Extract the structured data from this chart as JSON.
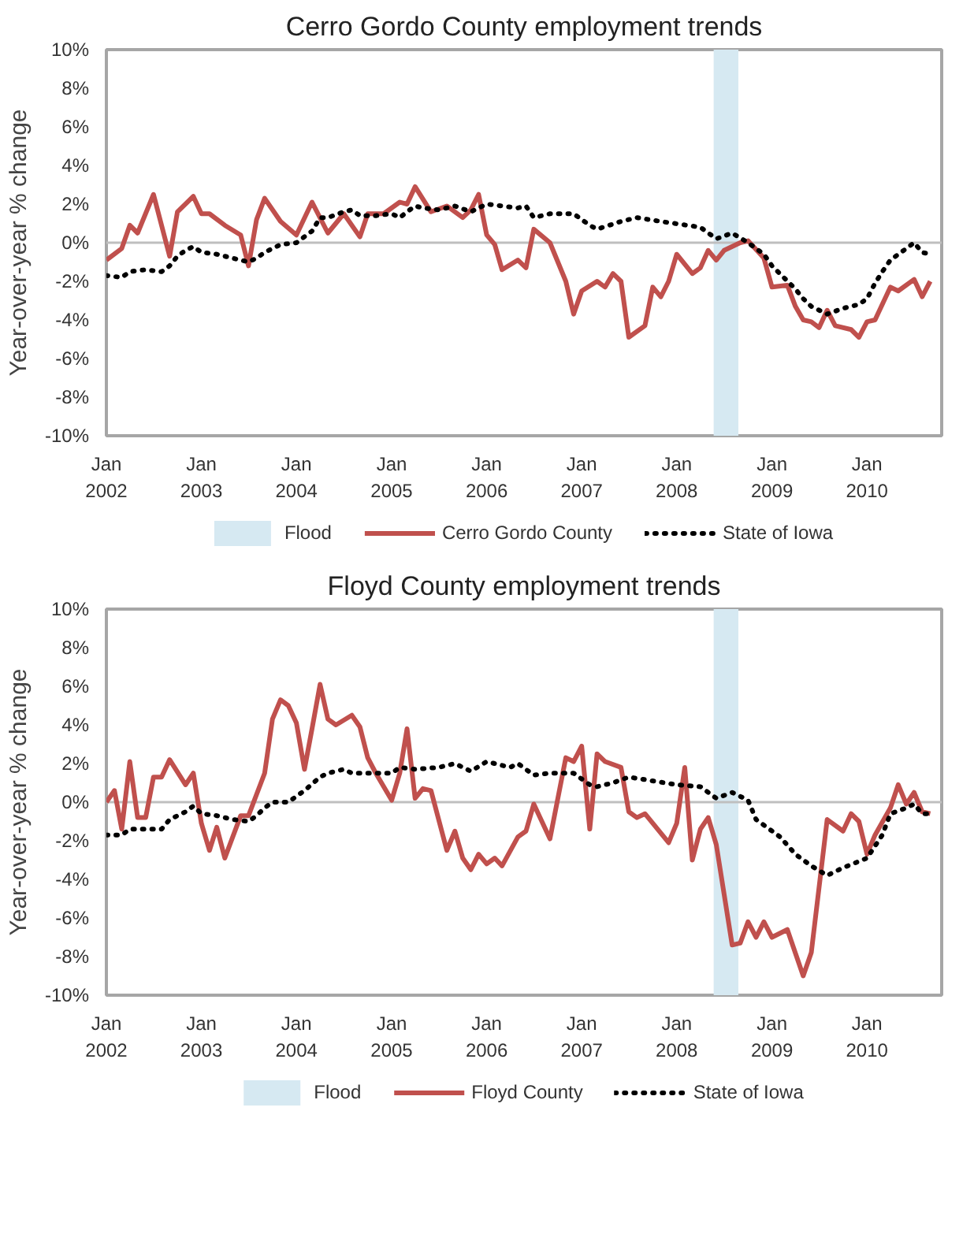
{
  "chart_data": [
    {
      "type": "line",
      "title": "Cerro Gordo County employment trends",
      "ylabel": "Year-over-year % change",
      "xlim": [
        "2002-01",
        "2010-10-15"
      ],
      "ylim": [
        -10,
        10
      ],
      "xticks": [
        {
          "value": "2002-01",
          "label": "Jan\n2002"
        },
        {
          "value": "2003-01",
          "label": "Jan\n2003"
        },
        {
          "value": "2004-01",
          "label": "Jan\n2004"
        },
        {
          "value": "2005-01",
          "label": "Jan\n2005"
        },
        {
          "value": "2006-01",
          "label": "Jan\n2006"
        },
        {
          "value": "2007-01",
          "label": "Jan\n2007"
        },
        {
          "value": "2008-01",
          "label": "Jan\n2008"
        },
        {
          "value": "2009-01",
          "label": "Jan\n2009"
        },
        {
          "value": "2010-01",
          "label": "Jan\n2010"
        }
      ],
      "yticks": [
        {
          "value": -10,
          "label": "-10%"
        },
        {
          "value": -8,
          "label": "-8%"
        },
        {
          "value": -6,
          "label": "-6%"
        },
        {
          "value": -4,
          "label": "-4%"
        },
        {
          "value": -2,
          "label": "-2%"
        },
        {
          "value": 0,
          "label": "0%"
        },
        {
          "value": 2,
          "label": "2%"
        },
        {
          "value": 4,
          "label": "4%"
        },
        {
          "value": 6,
          "label": "6%"
        },
        {
          "value": 8,
          "label": "8%"
        },
        {
          "value": 10,
          "label": "10%"
        }
      ],
      "grid": false,
      "legend": "bottom",
      "bands": [
        {
          "axis": "x",
          "from": "2008-05-22",
          "to": "2008-08-25",
          "label": "Flood",
          "color": "#d6e9f2"
        }
      ],
      "ref_lines": [
        {
          "axis": "y",
          "value": 0,
          "color": "#bfbfbf"
        }
      ],
      "series": [
        {
          "name": "Cerro Gordo County",
          "color": "#c0504d",
          "line_style": "solid",
          "x": [
            "2002-01",
            "2002-03",
            "2002-04",
            "2002-05",
            "2002-07",
            "2002-09",
            "2002-10",
            "2002-12",
            "2003-01",
            "2003-02",
            "2003-04",
            "2003-06",
            "2003-07",
            "2003-08",
            "2003-09",
            "2003-11",
            "2004-01",
            "2004-03",
            "2004-05",
            "2004-07",
            "2004-09",
            "2004-10",
            "2004-12",
            "2005-02",
            "2005-03",
            "2005-04",
            "2005-06",
            "2005-08",
            "2005-10",
            "2005-11",
            "2005-12",
            "2006-01",
            "2006-02",
            "2006-03",
            "2006-05",
            "2006-06",
            "2006-07",
            "2006-09",
            "2006-11",
            "2006-12",
            "2007-01",
            "2007-03",
            "2007-04",
            "2007-05",
            "2007-06",
            "2007-07",
            "2007-09",
            "2007-10",
            "2007-11",
            "2007-12",
            "2008-01",
            "2008-03",
            "2008-04",
            "2008-05",
            "2008-06",
            "2008-07",
            "2008-09",
            "2008-10",
            "2008-12",
            "2009-01",
            "2009-03",
            "2009-04",
            "2009-05",
            "2009-06",
            "2009-07",
            "2009-08",
            "2009-09",
            "2009-11",
            "2009-12",
            "2010-01",
            "2010-02",
            "2010-04",
            "2010-05",
            "2010-07",
            "2010-08",
            "2010-09"
          ],
          "values": [
            -0.9,
            -0.3,
            0.9,
            0.5,
            2.5,
            -0.7,
            1.6,
            2.4,
            1.5,
            1.5,
            0.9,
            0.4,
            -1.2,
            1.2,
            2.3,
            1.1,
            0.4,
            2.1,
            0.5,
            1.5,
            0.3,
            1.5,
            1.5,
            2.1,
            2.0,
            2.9,
            1.6,
            1.9,
            1.3,
            1.7,
            2.5,
            0.4,
            -0.1,
            -1.4,
            -0.9,
            -1.3,
            0.7,
            0.0,
            -2.0,
            -3.7,
            -2.5,
            -2.0,
            -2.3,
            -1.6,
            -2.0,
            -4.9,
            -4.3,
            -2.3,
            -2.8,
            -2.0,
            -0.6,
            -1.6,
            -1.3,
            -0.4,
            -0.9,
            -0.4,
            0.0,
            0.1,
            -0.8,
            -2.3,
            -2.2,
            -3.3,
            -4.0,
            -4.1,
            -4.4,
            -3.5,
            -4.3,
            -4.5,
            -4.9,
            -4.1,
            -4.0,
            -2.3,
            -2.5,
            -1.9,
            -2.8,
            -2.0
          ]
        },
        {
          "name": "State of Iowa",
          "color": "#000000",
          "line_style": "dotted",
          "x": [
            "2002-01",
            "2002-03",
            "2002-04",
            "2002-06",
            "2002-08",
            "2002-09",
            "2002-10",
            "2002-11",
            "2002-12",
            "2003-01",
            "2003-03",
            "2003-05",
            "2003-07",
            "2003-08",
            "2003-09",
            "2003-11",
            "2004-01",
            "2004-03",
            "2004-04",
            "2004-05",
            "2004-07",
            "2004-08",
            "2004-09",
            "2004-11",
            "2005-01",
            "2005-02",
            "2005-03",
            "2005-04",
            "2005-05",
            "2005-07",
            "2005-09",
            "2005-11",
            "2006-01",
            "2006-03",
            "2006-05",
            "2006-06",
            "2006-07",
            "2006-09",
            "2006-12",
            "2007-02",
            "2007-03",
            "2007-06",
            "2007-08",
            "2007-11",
            "2008-04",
            "2008-06",
            "2008-08",
            "2008-10",
            "2008-12",
            "2009-01",
            "2009-04",
            "2009-05",
            "2009-06",
            "2009-08",
            "2009-10",
            "2009-12",
            "2010-01",
            "2010-02",
            "2010-03",
            "2010-04",
            "2010-06",
            "2010-07",
            "2010-08",
            "2010-09"
          ],
          "values": [
            -1.7,
            -1.8,
            -1.5,
            -1.4,
            -1.5,
            -1.2,
            -0.7,
            -0.4,
            -0.2,
            -0.5,
            -0.6,
            -0.8,
            -1.0,
            -0.8,
            -0.5,
            -0.1,
            0.0,
            0.6,
            1.3,
            1.3,
            1.6,
            1.7,
            1.4,
            1.4,
            1.5,
            1.3,
            1.6,
            1.9,
            1.8,
            1.7,
            1.9,
            1.6,
            2.0,
            1.9,
            1.8,
            1.9,
            1.3,
            1.5,
            1.5,
            0.9,
            0.7,
            1.1,
            1.3,
            1.1,
            0.8,
            0.2,
            0.5,
            0.0,
            -0.6,
            -1.2,
            -2.4,
            -2.9,
            -3.3,
            -3.7,
            -3.4,
            -3.2,
            -2.9,
            -2.1,
            -1.5,
            -0.9,
            -0.3,
            0.0,
            -0.5,
            -0.6
          ]
        }
      ]
    },
    {
      "type": "line",
      "title": "Floyd County employment trends",
      "ylabel": "Year-over-year % change",
      "xlim": [
        "2002-01",
        "2010-10-15"
      ],
      "ylim": [
        -10,
        10
      ],
      "xticks": [
        {
          "value": "2002-01",
          "label": "Jan\n2002"
        },
        {
          "value": "2003-01",
          "label": "Jan\n2003"
        },
        {
          "value": "2004-01",
          "label": "Jan\n2004"
        },
        {
          "value": "2005-01",
          "label": "Jan\n2005"
        },
        {
          "value": "2006-01",
          "label": "Jan\n2006"
        },
        {
          "value": "2007-01",
          "label": "Jan\n2007"
        },
        {
          "value": "2008-01",
          "label": "Jan\n2008"
        },
        {
          "value": "2009-01",
          "label": "Jan\n2009"
        },
        {
          "value": "2010-01",
          "label": "Jan\n2010"
        }
      ],
      "yticks": [
        {
          "value": -10,
          "label": "-10%"
        },
        {
          "value": -8,
          "label": "-8%"
        },
        {
          "value": -6,
          "label": "-6%"
        },
        {
          "value": -4,
          "label": "-4%"
        },
        {
          "value": -2,
          "label": "-2%"
        },
        {
          "value": 0,
          "label": "0%"
        },
        {
          "value": 2,
          "label": "2%"
        },
        {
          "value": 4,
          "label": "4%"
        },
        {
          "value": 6,
          "label": "6%"
        },
        {
          "value": 8,
          "label": "8%"
        },
        {
          "value": 10,
          "label": "10%"
        }
      ],
      "grid": false,
      "legend": "bottom",
      "bands": [
        {
          "axis": "x",
          "from": "2008-05-22",
          "to": "2008-08-25",
          "label": "Flood",
          "color": "#d6e9f2"
        }
      ],
      "ref_lines": [
        {
          "axis": "y",
          "value": 0,
          "color": "#bfbfbf"
        }
      ],
      "series": [
        {
          "name": "Floyd County",
          "color": "#c0504d",
          "line_style": "solid",
          "x": [
            "2002-01",
            "2002-02",
            "2002-03",
            "2002-04",
            "2002-05",
            "2002-06",
            "2002-07",
            "2002-08",
            "2002-09",
            "2002-11",
            "2002-12",
            "2003-01",
            "2003-02",
            "2003-03",
            "2003-04",
            "2003-06",
            "2003-07",
            "2003-09",
            "2003-10",
            "2003-11",
            "2003-12",
            "2004-01",
            "2004-02",
            "2004-03",
            "2004-04",
            "2004-05",
            "2004-06",
            "2004-08",
            "2004-09",
            "2004-10",
            "2004-11",
            "2005-01",
            "2005-02",
            "2005-03",
            "2005-04",
            "2005-05",
            "2005-06",
            "2005-08",
            "2005-09",
            "2005-10",
            "2005-11",
            "2005-12",
            "2006-01",
            "2006-02",
            "2006-03",
            "2006-05",
            "2006-06",
            "2006-07",
            "2006-09",
            "2006-11",
            "2006-12",
            "2007-01",
            "2007-02",
            "2007-03",
            "2007-04",
            "2007-06",
            "2007-07",
            "2007-08",
            "2007-09",
            "2007-12",
            "2008-01",
            "2008-02",
            "2008-03",
            "2008-04",
            "2008-05",
            "2008-06",
            "2008-08",
            "2008-09",
            "2008-10",
            "2008-11",
            "2008-12",
            "2009-01",
            "2009-03",
            "2009-05",
            "2009-06",
            "2009-08",
            "2009-10",
            "2009-11",
            "2009-12",
            "2010-01",
            "2010-02",
            "2010-04",
            "2010-05",
            "2010-06",
            "2010-07",
            "2010-08",
            "2010-09"
          ],
          "values": [
            0.0,
            0.6,
            -1.4,
            2.1,
            -0.8,
            -0.8,
            1.3,
            1.3,
            2.2,
            0.9,
            1.5,
            -1.1,
            -2.5,
            -1.3,
            -2.9,
            -0.7,
            -0.7,
            1.5,
            4.3,
            5.3,
            5.0,
            4.1,
            1.7,
            3.8,
            6.1,
            4.3,
            4.0,
            4.5,
            3.9,
            2.3,
            1.5,
            0.1,
            1.5,
            3.8,
            0.2,
            0.7,
            0.6,
            -2.5,
            -1.5,
            -2.9,
            -3.5,
            -2.7,
            -3.2,
            -2.9,
            -3.3,
            -1.8,
            -1.5,
            -0.1,
            -1.9,
            2.3,
            2.1,
            2.9,
            -1.4,
            2.5,
            2.1,
            1.8,
            -0.5,
            -0.8,
            -0.6,
            -2.1,
            -1.1,
            1.8,
            -3.0,
            -1.4,
            -0.8,
            -2.2,
            -7.4,
            -7.3,
            -6.2,
            -7.0,
            -6.2,
            -7.0,
            -6.6,
            -9.0,
            -7.8,
            -0.9,
            -1.5,
            -0.6,
            -1.0,
            -2.7,
            -1.7,
            -0.3,
            0.9,
            -0.1,
            0.5,
            -0.5,
            -0.6
          ]
        },
        {
          "name": "State of Iowa",
          "color": "#000000",
          "line_style": "dotted",
          "x": [
            "2002-01",
            "2002-03",
            "2002-04",
            "2002-08",
            "2002-09",
            "2002-11",
            "2002-12",
            "2003-01",
            "2003-03",
            "2003-05",
            "2003-07",
            "2003-08",
            "2003-09",
            "2003-10",
            "2003-12",
            "2004-02",
            "2004-04",
            "2004-05",
            "2004-07",
            "2004-08",
            "2004-11",
            "2005-01",
            "2005-02",
            "2005-04",
            "2005-07",
            "2005-09",
            "2005-11",
            "2006-01",
            "2006-04",
            "2006-05",
            "2006-07",
            "2006-09",
            "2006-12",
            "2007-02",
            "2007-03",
            "2007-05",
            "2007-07",
            "2007-10",
            "2008-01",
            "2008-04",
            "2008-06",
            "2008-08",
            "2008-10",
            "2008-11",
            "2009-02",
            "2009-04",
            "2009-06",
            "2009-08",
            "2009-10",
            "2010-01",
            "2010-03",
            "2010-04",
            "2010-06",
            "2010-07",
            "2010-08",
            "2010-09"
          ],
          "values": [
            -1.7,
            -1.7,
            -1.4,
            -1.4,
            -0.9,
            -0.5,
            -0.2,
            -0.6,
            -0.7,
            -0.9,
            -1.0,
            -0.7,
            -0.3,
            0.0,
            0.0,
            0.6,
            1.3,
            1.5,
            1.7,
            1.5,
            1.5,
            1.5,
            1.8,
            1.7,
            1.8,
            2.0,
            1.6,
            2.1,
            1.8,
            2.0,
            1.4,
            1.5,
            1.5,
            0.9,
            0.8,
            1.0,
            1.3,
            1.1,
            0.9,
            0.8,
            0.2,
            0.5,
            0.1,
            -0.9,
            -1.8,
            -2.7,
            -3.3,
            -3.8,
            -3.4,
            -2.9,
            -1.7,
            -0.6,
            -0.3,
            -0.1,
            -0.6,
            -0.6
          ]
        }
      ]
    }
  ]
}
